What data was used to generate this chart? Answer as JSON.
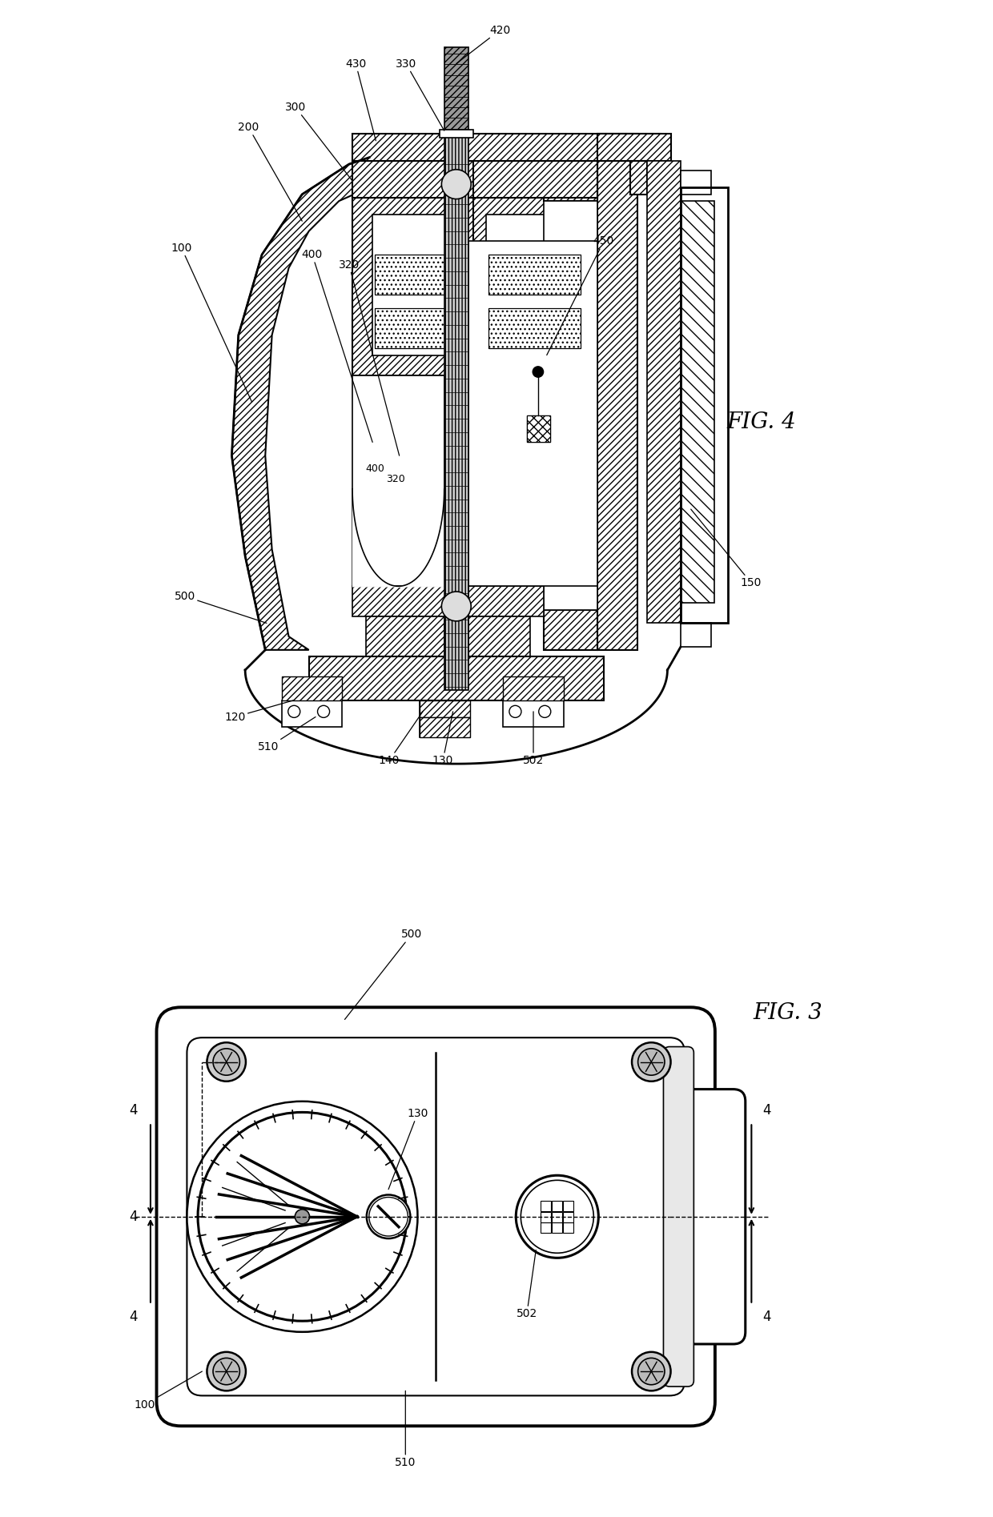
{
  "bg_color": "#ffffff",
  "line_color": "#000000",
  "fig_width": 12.4,
  "fig_height": 18.95,
  "fig4_title": "FIG. 4",
  "fig3_title": "FIG. 3"
}
